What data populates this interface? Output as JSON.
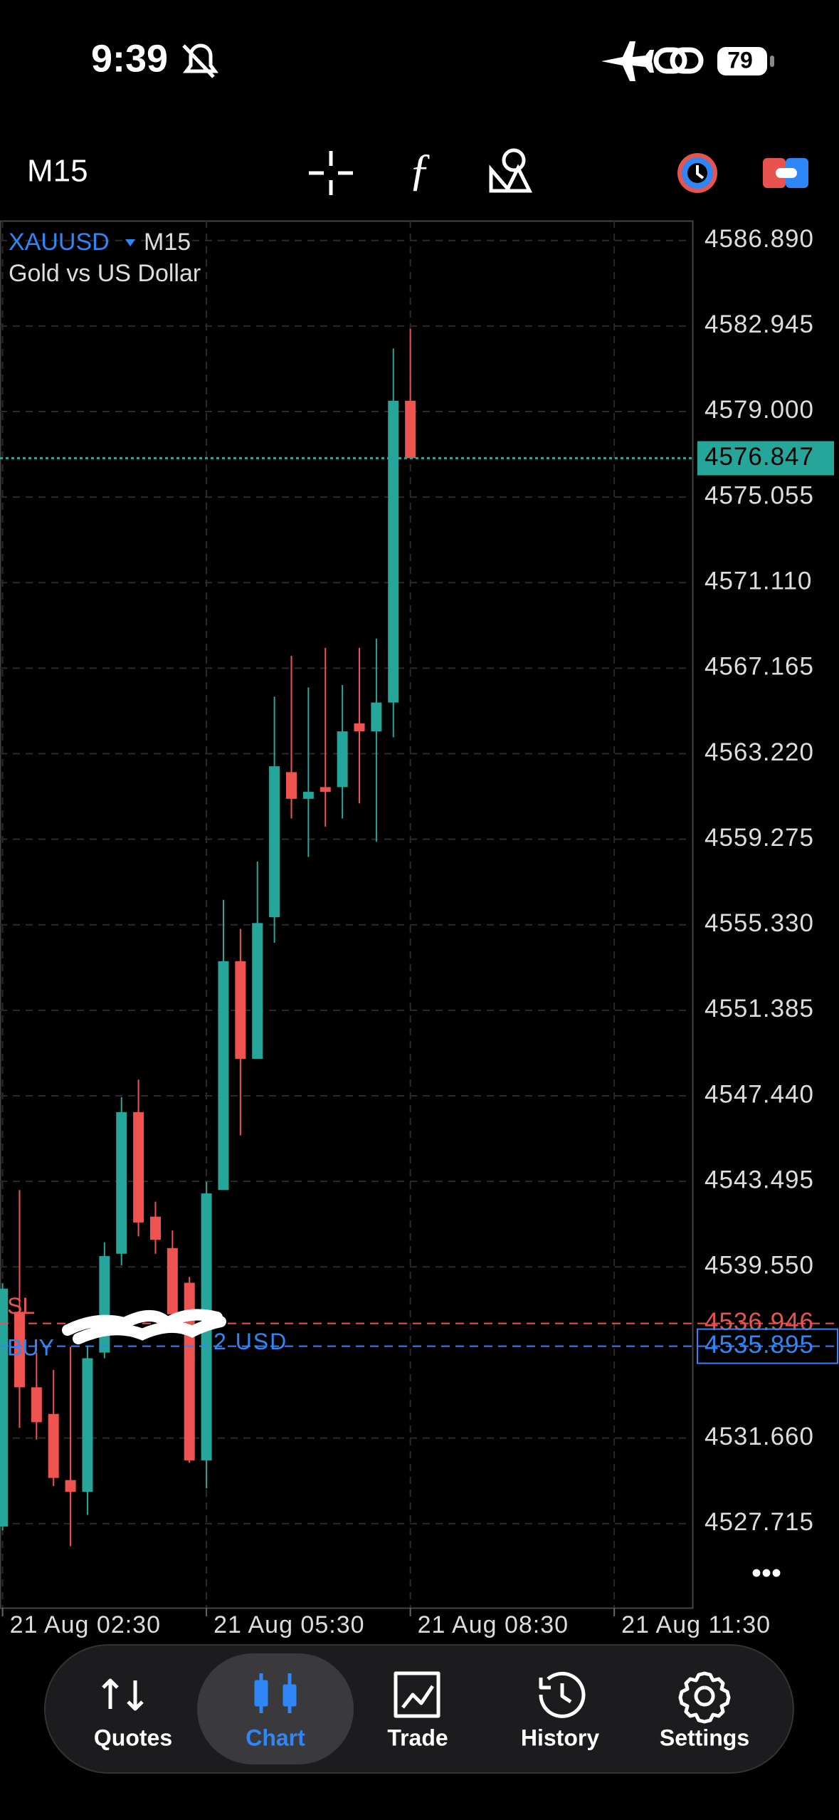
{
  "status_bar": {
    "time": "9:39",
    "battery": "79"
  },
  "toolbar": {
    "timeframe": "M15"
  },
  "chart_data": {
    "type": "candlestick",
    "symbol": "XAUUSD",
    "timeframe": "M15",
    "description": "Gold vs US Dollar",
    "x": [
      0,
      1,
      2,
      3,
      4,
      5,
      6,
      7,
      8,
      9,
      10,
      11,
      12,
      13,
      14,
      15,
      16,
      17,
      18,
      19,
      20,
      21,
      22,
      23,
      24
    ],
    "open": [
      4527.58,
      4537.48,
      4534.0,
      4532.77,
      4529.72,
      4529.18,
      4535.6,
      4540.16,
      4546.69,
      4541.87,
      4540.42,
      4538.82,
      4530.63,
      4543.1,
      4553.65,
      4549.15,
      4555.68,
      4562.37,
      4561.14,
      4561.68,
      4561.68,
      4564.62,
      4564.25,
      4565.58,
      4579.5
    ],
    "high": [
      4538.8,
      4543.1,
      4535.6,
      4534.8,
      4535.87,
      4535.87,
      4540.69,
      4547.38,
      4548.19,
      4542.56,
      4541.23,
      4539.09,
      4543.48,
      4556.48,
      4555.14,
      4558.25,
      4565.85,
      4567.73,
      4566.28,
      4568.1,
      4566.39,
      4568.1,
      4568.53,
      4581.91,
      4582.82
    ],
    "low": [
      4527.4,
      4532.13,
      4531.59,
      4529.45,
      4526.67,
      4528.11,
      4535.34,
      4539.62,
      4540.96,
      4540.16,
      4536.68,
      4530.52,
      4529.34,
      4543.1,
      4545.62,
      4549.15,
      4554.5,
      4560.23,
      4558.46,
      4559.86,
      4560.23,
      4560.93,
      4559.16,
      4563.98,
      4576.85
    ],
    "close": [
      4538.55,
      4534.0,
      4532.39,
      4529.82,
      4529.18,
      4535.34,
      4540.05,
      4546.69,
      4541.6,
      4540.8,
      4537.37,
      4530.63,
      4542.94,
      4553.65,
      4549.15,
      4555.41,
      4562.64,
      4561.14,
      4561.46,
      4561.46,
      4564.25,
      4564.25,
      4565.58,
      4579.5,
      4576.85
    ],
    "up_color": "#26a69a",
    "down_color": "#ef5350",
    "xlim": [
      -0.15,
      40.6
    ],
    "xticks": [
      {
        "value": 0,
        "label": "21 Aug 02:30"
      },
      {
        "value": 12,
        "label": "21 Aug 05:30"
      },
      {
        "value": 24,
        "label": "21 Aug 08:30"
      },
      {
        "value": 36,
        "label": "21 Aug 11:30"
      }
    ],
    "ylim": [
      4523.83,
      4587.8
    ],
    "yticks": [
      {
        "value": 4586.89,
        "label": "4586.890"
      },
      {
        "value": 4582.945,
        "label": "4582.945"
      },
      {
        "value": 4579,
        "label": "4579.000"
      },
      {
        "value": 4575.055,
        "label": "4575.055"
      },
      {
        "value": 4571.11,
        "label": "4571.110"
      },
      {
        "value": 4567.165,
        "label": "4567.165"
      },
      {
        "value": 4563.22,
        "label": "4563.220"
      },
      {
        "value": 4559.275,
        "label": "4559.275"
      },
      {
        "value": 4555.33,
        "label": "4555.330"
      },
      {
        "value": 4551.385,
        "label": "4551.385"
      },
      {
        "value": 4547.44,
        "label": "4547.440"
      },
      {
        "value": 4543.495,
        "label": "4543.495"
      },
      {
        "value": 4539.55,
        "label": "4539.550"
      },
      {
        "value": 4531.66,
        "label": "4531.660"
      },
      {
        "value": 4527.715,
        "label": "4527.715"
      }
    ],
    "grid": true,
    "current_price": {
      "value": 4576.847,
      "value_label": "4576.847",
      "color": "#26a69a"
    },
    "price_lines": [
      {
        "label": "SL",
        "value": 4536.946,
        "value_label": "4536.946",
        "color": "#e8534f"
      },
      {
        "label": "BUY",
        "note": "2 USD",
        "value": 4535.895,
        "value_label": "4535.895",
        "color": "#2f86f6"
      }
    ]
  },
  "nav": {
    "tabs": [
      "Quotes",
      "Chart",
      "Trade",
      "History",
      "Settings"
    ],
    "active": 1
  }
}
